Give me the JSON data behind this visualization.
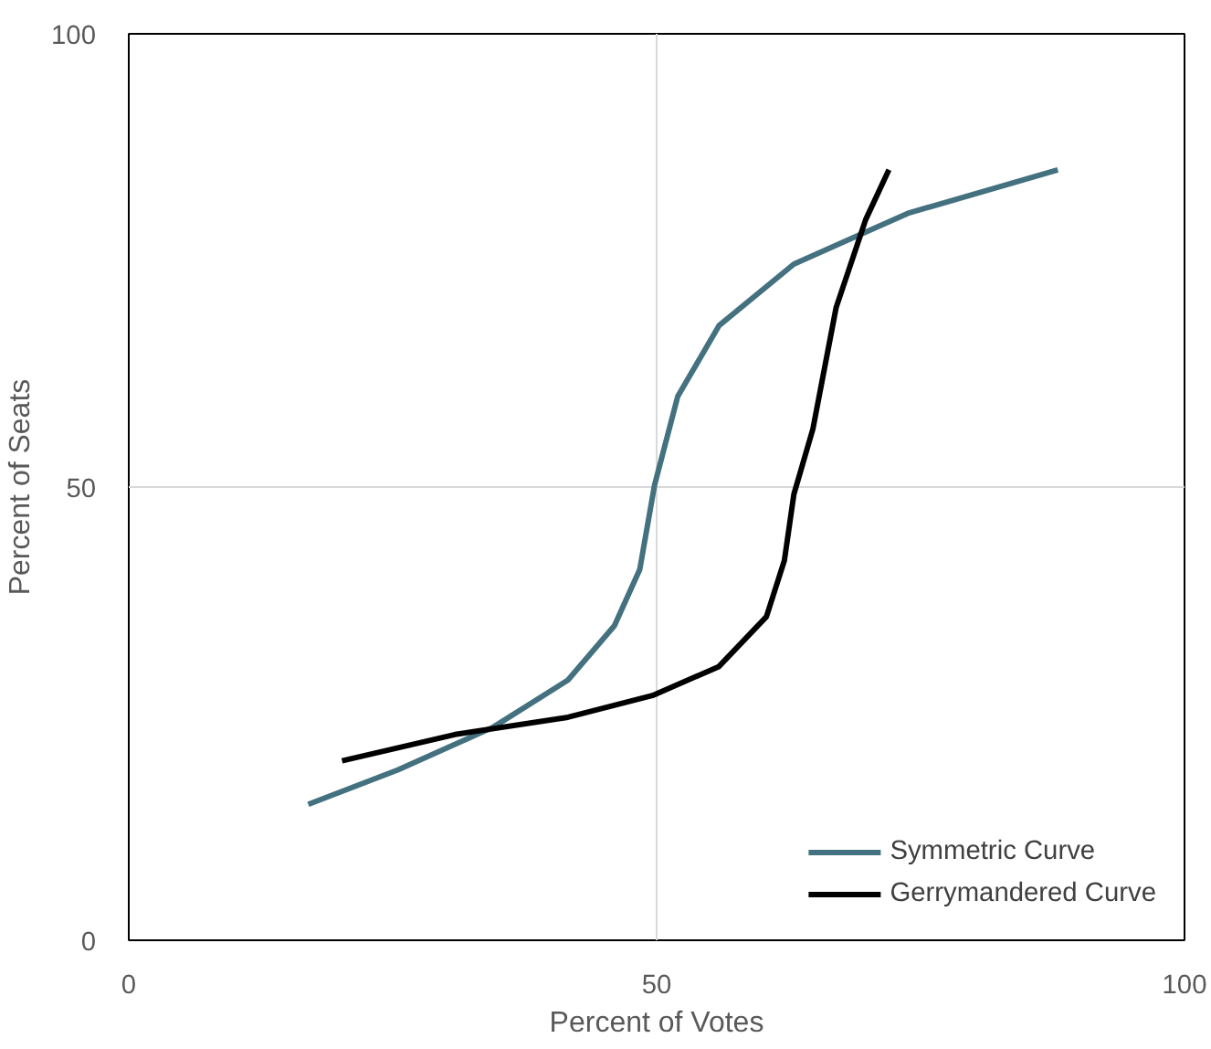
{
  "chart_data": {
    "type": "line",
    "xlabel": "Percent of Votes",
    "ylabel": "Percent of Seats",
    "xlim": [
      0,
      100
    ],
    "ylim": [
      0,
      100
    ],
    "xticks": [
      0,
      50,
      100
    ],
    "yticks": [
      0,
      50,
      100
    ],
    "grid": true,
    "legend": "bottom right",
    "marker": "none",
    "line_style": "solid",
    "series": [
      {
        "name": "Symmetric Curve",
        "color": "#44717f",
        "x": [
          17,
          25.5,
          34.5,
          41.6,
          46,
          48.4,
          49.8,
          52,
          55.9,
          63,
          73.8,
          88
        ],
        "values": [
          15,
          18.8,
          23.5,
          28.7,
          34.7,
          40.9,
          50.2,
          60,
          67.8,
          74.6,
          80.2,
          85
        ]
      },
      {
        "name": "Gerrymandered Curve",
        "color": "#000000",
        "x": [
          20.2,
          30.9,
          41.6,
          49.6,
          55.9,
          60.4,
          62.1,
          63,
          64.8,
          67,
          69.8,
          72
        ],
        "values": [
          19.8,
          22.7,
          24.6,
          27,
          30.2,
          35.7,
          41.9,
          49.2,
          56.4,
          69.8,
          79.5,
          85
        ]
      }
    ]
  }
}
